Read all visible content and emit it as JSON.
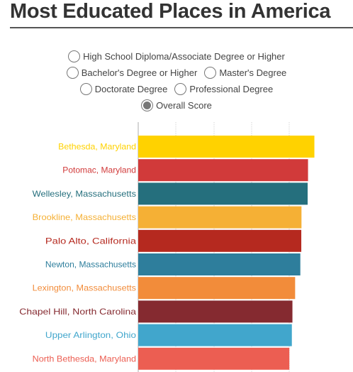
{
  "header": {
    "title": "Most Educated Places in America"
  },
  "options": [
    [
      {
        "label": "High School Diploma/Associate Degree or Higher",
        "selected": false
      }
    ],
    [
      {
        "label": "Bachelor's Degree or Higher",
        "selected": false
      },
      {
        "label": "Master's Degree",
        "selected": false
      }
    ],
    [
      {
        "label": "Doctorate Degree",
        "selected": false
      },
      {
        "label": "Professional Degree",
        "selected": false
      }
    ],
    [
      {
        "label": "Overall Score",
        "selected": true
      }
    ]
  ],
  "chart_data": {
    "type": "bar",
    "orientation": "horizontal",
    "title": "",
    "xlabel": "",
    "ylabel": "",
    "xlim": [
      0,
      100
    ],
    "categories": [
      "Bethesda, Maryland",
      "Potomac, Maryland",
      "Wellesley, Massachusetts",
      "Brookline, Massachusetts",
      "Palo Alto, California",
      "Newton, Massachusetts",
      "Lexington, Massachusetts",
      "Chapel Hill, North Carolina",
      "Upper Arlington, Ohio",
      "North Bethesda, Maryland"
    ],
    "values": [
      91.5,
      88.2,
      88.0,
      84.8,
      84.7,
      84.2,
      81.5,
      80.1,
      79.8,
      78.5
    ],
    "colors": [
      "#FFD200",
      "#D13A3A",
      "#256F7D",
      "#F5B035",
      "#B5291F",
      "#2E7E9C",
      "#F28C3A",
      "#852A30",
      "#41A6CC",
      "#EC5E52"
    ],
    "grid": true
  }
}
